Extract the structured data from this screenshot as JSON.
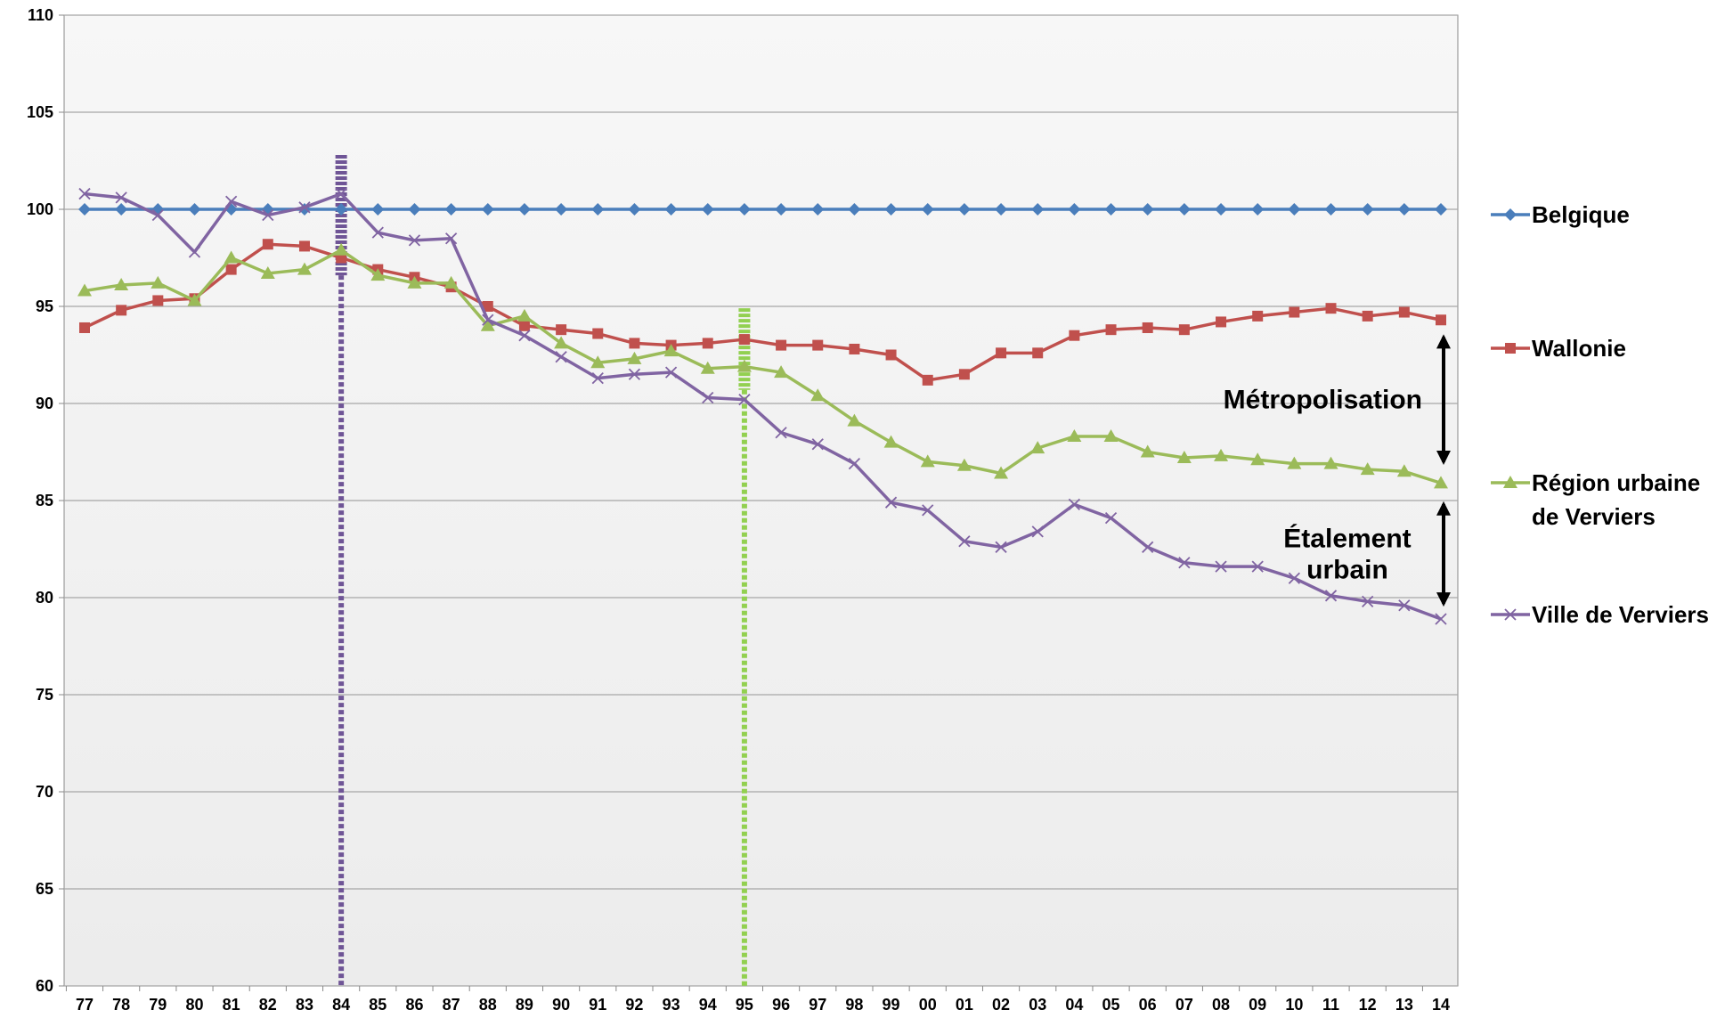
{
  "chart_data": {
    "type": "line",
    "categories": [
      "77",
      "78",
      "79",
      "80",
      "81",
      "82",
      "83",
      "84",
      "85",
      "86",
      "87",
      "88",
      "89",
      "90",
      "91",
      "92",
      "93",
      "94",
      "95",
      "96",
      "97",
      "98",
      "99",
      "00",
      "01",
      "02",
      "03",
      "04",
      "05",
      "06",
      "07",
      "08",
      "09",
      "10",
      "11",
      "12",
      "13",
      "14"
    ],
    "series": [
      {
        "name": "Belgique",
        "color": "#4a7ebb",
        "marker": "diamond",
        "values": [
          100,
          100,
          100,
          100,
          100,
          100,
          100,
          100,
          100,
          100,
          100,
          100,
          100,
          100,
          100,
          100,
          100,
          100,
          100,
          100,
          100,
          100,
          100,
          100,
          100,
          100,
          100,
          100,
          100,
          100,
          100,
          100,
          100,
          100,
          100,
          100,
          100,
          100
        ]
      },
      {
        "name": "Wallonie",
        "color": "#c0504d",
        "marker": "square",
        "values": [
          93.9,
          94.8,
          95.3,
          95.4,
          96.9,
          98.2,
          98.1,
          97.5,
          96.9,
          96.5,
          96.0,
          95.0,
          94.0,
          93.8,
          93.6,
          93.1,
          93.0,
          93.1,
          93.3,
          93.0,
          93.0,
          92.8,
          92.5,
          91.2,
          91.5,
          92.6,
          92.6,
          93.5,
          93.8,
          93.9,
          93.8,
          94.2,
          94.5,
          94.7,
          94.9,
          94.5,
          94.7,
          94.3
        ]
      },
      {
        "name": "Région urbaine de Verviers",
        "color": "#9bbb59",
        "marker": "triangle",
        "values": [
          95.8,
          96.1,
          96.2,
          95.3,
          97.5,
          96.7,
          96.9,
          97.9,
          96.6,
          96.2,
          96.2,
          94.0,
          94.5,
          93.1,
          92.1,
          92.3,
          92.7,
          91.8,
          91.9,
          91.6,
          90.4,
          89.1,
          88.0,
          87.0,
          86.8,
          86.4,
          87.7,
          88.3,
          88.3,
          87.5,
          87.2,
          87.3,
          87.1,
          86.9,
          86.9,
          86.6,
          86.5,
          85.9
        ]
      },
      {
        "name": "Ville de Verviers",
        "color": "#8064a2",
        "marker": "x",
        "values": [
          100.8,
          100.6,
          99.7,
          97.8,
          100.4,
          99.7,
          100.1,
          100.8,
          98.8,
          98.4,
          98.5,
          94.3,
          93.5,
          92.4,
          91.3,
          91.5,
          91.6,
          90.3,
          90.2,
          88.5,
          87.9,
          86.9,
          84.9,
          84.5,
          82.9,
          82.6,
          83.4,
          84.8,
          84.1,
          82.6,
          81.8,
          81.6,
          81.6,
          81.0,
          80.1,
          79.8,
          79.6,
          78.9
        ]
      }
    ],
    "ylim": [
      60,
      110
    ],
    "yticks": [
      60,
      65,
      70,
      75,
      80,
      85,
      90,
      95,
      100,
      105,
      110
    ],
    "grid": true,
    "vlines": [
      {
        "x": "84",
        "color": "#6f5596",
        "band": [
          96.6,
          102.8
        ]
      },
      {
        "x": "95",
        "color": "#92d050",
        "band": [
          90.7,
          94.9
        ]
      }
    ],
    "annotations": [
      {
        "lines": [
          "Métropolisation"
        ],
        "span": [
          93.6,
          86.8
        ]
      },
      {
        "lines": [
          "Étalement",
          "urbain"
        ],
        "span": [
          85.0,
          79.5
        ]
      }
    ]
  }
}
